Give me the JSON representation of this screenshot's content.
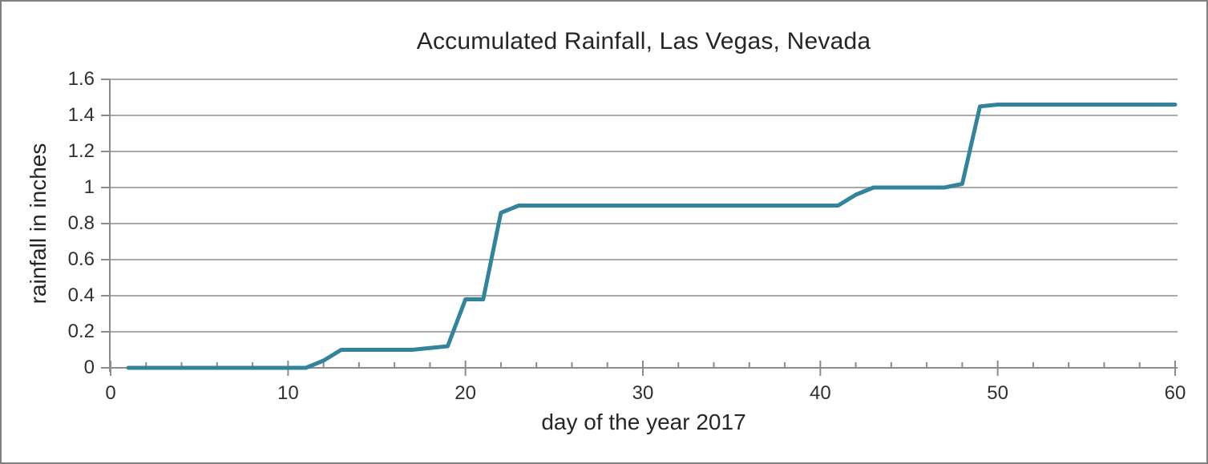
{
  "window": {
    "background": "#ffffff",
    "border_color": "#808080"
  },
  "chart": {
    "title": "Accumulated Rainfall, Las Vegas, Nevada",
    "x_axis_label": "day of the year 2017",
    "y_axis_label": "rainfall in inches",
    "colors": {
      "line": "#31849b",
      "gridline": "#a9a9a9",
      "axis": "#8c8c8c",
      "tick": "#8c8c8c",
      "title_text": "#262626",
      "tick_text": "#303030"
    }
  },
  "chart_data": {
    "type": "line",
    "title": "Accumulated Rainfall, Las Vegas, Nevada",
    "xlabel": "day of the year 2017",
    "ylabel": "rainfall in inches",
    "xlim": [
      0,
      60
    ],
    "ylim": [
      0,
      1.6
    ],
    "x_ticks": [
      0,
      10,
      20,
      30,
      40,
      50,
      60
    ],
    "x_tick_labels": [
      "0",
      "10",
      "20",
      "30",
      "40",
      "50",
      "60"
    ],
    "x_minor_tick_interval": 2,
    "y_ticks": [
      0,
      0.2,
      0.4,
      0.6,
      0.8,
      1,
      1.2,
      1.4,
      1.6
    ],
    "y_tick_labels": [
      "0",
      "0.2",
      "0.4",
      "0.6",
      "0.8",
      "1",
      "1.2",
      "1.4",
      "1.6"
    ],
    "grid": "horizontal",
    "legend": "none",
    "series": [
      {
        "name": "accumulated rainfall",
        "x": [
          1,
          2,
          3,
          4,
          5,
          6,
          7,
          8,
          9,
          10,
          11,
          12,
          13,
          14,
          15,
          16,
          17,
          18,
          19,
          20,
          21,
          22,
          23,
          24,
          25,
          26,
          27,
          28,
          29,
          30,
          31,
          32,
          33,
          34,
          35,
          36,
          37,
          38,
          39,
          40,
          41,
          42,
          43,
          44,
          45,
          46,
          47,
          48,
          49,
          50,
          51,
          52,
          53,
          54,
          55,
          56,
          57,
          58,
          59,
          60
        ],
        "y": [
          0,
          0,
          0,
          0,
          0,
          0,
          0,
          0,
          0,
          0,
          0,
          0.04,
          0.1,
          0.1,
          0.1,
          0.1,
          0.1,
          0.11,
          0.12,
          0.38,
          0.38,
          0.86,
          0.9,
          0.9,
          0.9,
          0.9,
          0.9,
          0.9,
          0.9,
          0.9,
          0.9,
          0.9,
          0.9,
          0.9,
          0.9,
          0.9,
          0.9,
          0.9,
          0.9,
          0.9,
          0.9,
          0.96,
          1,
          1,
          1,
          1,
          1,
          1.02,
          1.45,
          1.46,
          1.46,
          1.46,
          1.46,
          1.46,
          1.46,
          1.46,
          1.46,
          1.46,
          1.46,
          1.46
        ]
      }
    ]
  }
}
